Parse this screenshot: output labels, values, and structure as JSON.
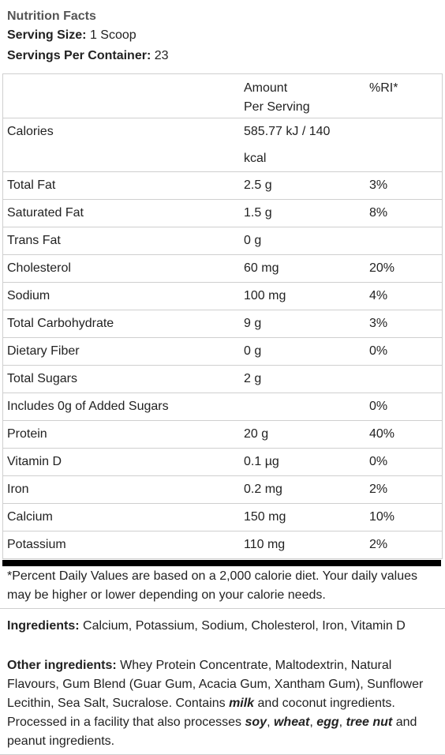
{
  "header": {
    "title": "Nutrition Facts",
    "serving_size_label": "Serving Size:",
    "serving_size_value": "1 Scoop",
    "servings_label": "Servings Per Container:",
    "servings_value": "23"
  },
  "table": {
    "col_amount_line1": "Amount",
    "col_amount_line2": "Per Serving",
    "col_ri": "%RI*",
    "calories_label": "Calories",
    "calories_line1": "585.77 kJ / 140",
    "calories_line2": "kcal",
    "rows": [
      {
        "name": "Total Fat",
        "amount": "2.5 g",
        "ri": "3%"
      },
      {
        "name": "Saturated Fat",
        "amount": "1.5 g",
        "ri": "8%"
      },
      {
        "name": "Trans Fat",
        "amount": "0 g",
        "ri": ""
      },
      {
        "name": "Cholesterol",
        "amount": "60 mg",
        "ri": "20%"
      },
      {
        "name": "Sodium",
        "amount": "100 mg",
        "ri": "4%"
      },
      {
        "name": "Total Carbohydrate",
        "amount": "9 g",
        "ri": "3%"
      },
      {
        "name": "Dietary Fiber",
        "amount": "0 g",
        "ri": "0%"
      },
      {
        "name": "Total Sugars",
        "amount": "2 g",
        "ri": ""
      },
      {
        "name": "Includes 0g of Added Sugars",
        "amount": "",
        "ri": "0%"
      },
      {
        "name": "Protein",
        "amount": "20 g",
        "ri": "40%"
      },
      {
        "name": "Vitamin D",
        "amount": "0.1 µg",
        "ri": "0%"
      },
      {
        "name": "Iron",
        "amount": "0.2 mg",
        "ri": "2%"
      },
      {
        "name": "Calcium",
        "amount": "150 mg",
        "ri": "10%"
      },
      {
        "name": "Potassium",
        "amount": "110 mg",
        "ri": "2%"
      }
    ]
  },
  "footnote": "*Percent Daily Values are based on a 2,000 calorie diet. Your daily values may be higher or lower depending on your calorie needs.",
  "ingredients": {
    "label": "Ingredients:",
    "text": "Calcium, Potassium, Sodium, Cholesterol, Iron, Vitamin D"
  },
  "other_ingredients": {
    "label": "Other ingredients:",
    "part1": "Whey Protein Concentrate, Maltodextrin, Natural Flavours, Gum Blend (Guar Gum, Acacia Gum, Xantham Gum), Sunflower Lecithin, Sea Salt, Sucralose. Contains",
    "allergen_milk": "milk",
    "part2": "and coconut ingredients. Processed in a facility that also processes",
    "allergen_soy": "soy",
    "allergen_wheat": "wheat",
    "allergen_egg": "egg",
    "allergen_tree_nut": "tree nut",
    "part3": "and peanut ingredients.",
    "comma": ","
  }
}
